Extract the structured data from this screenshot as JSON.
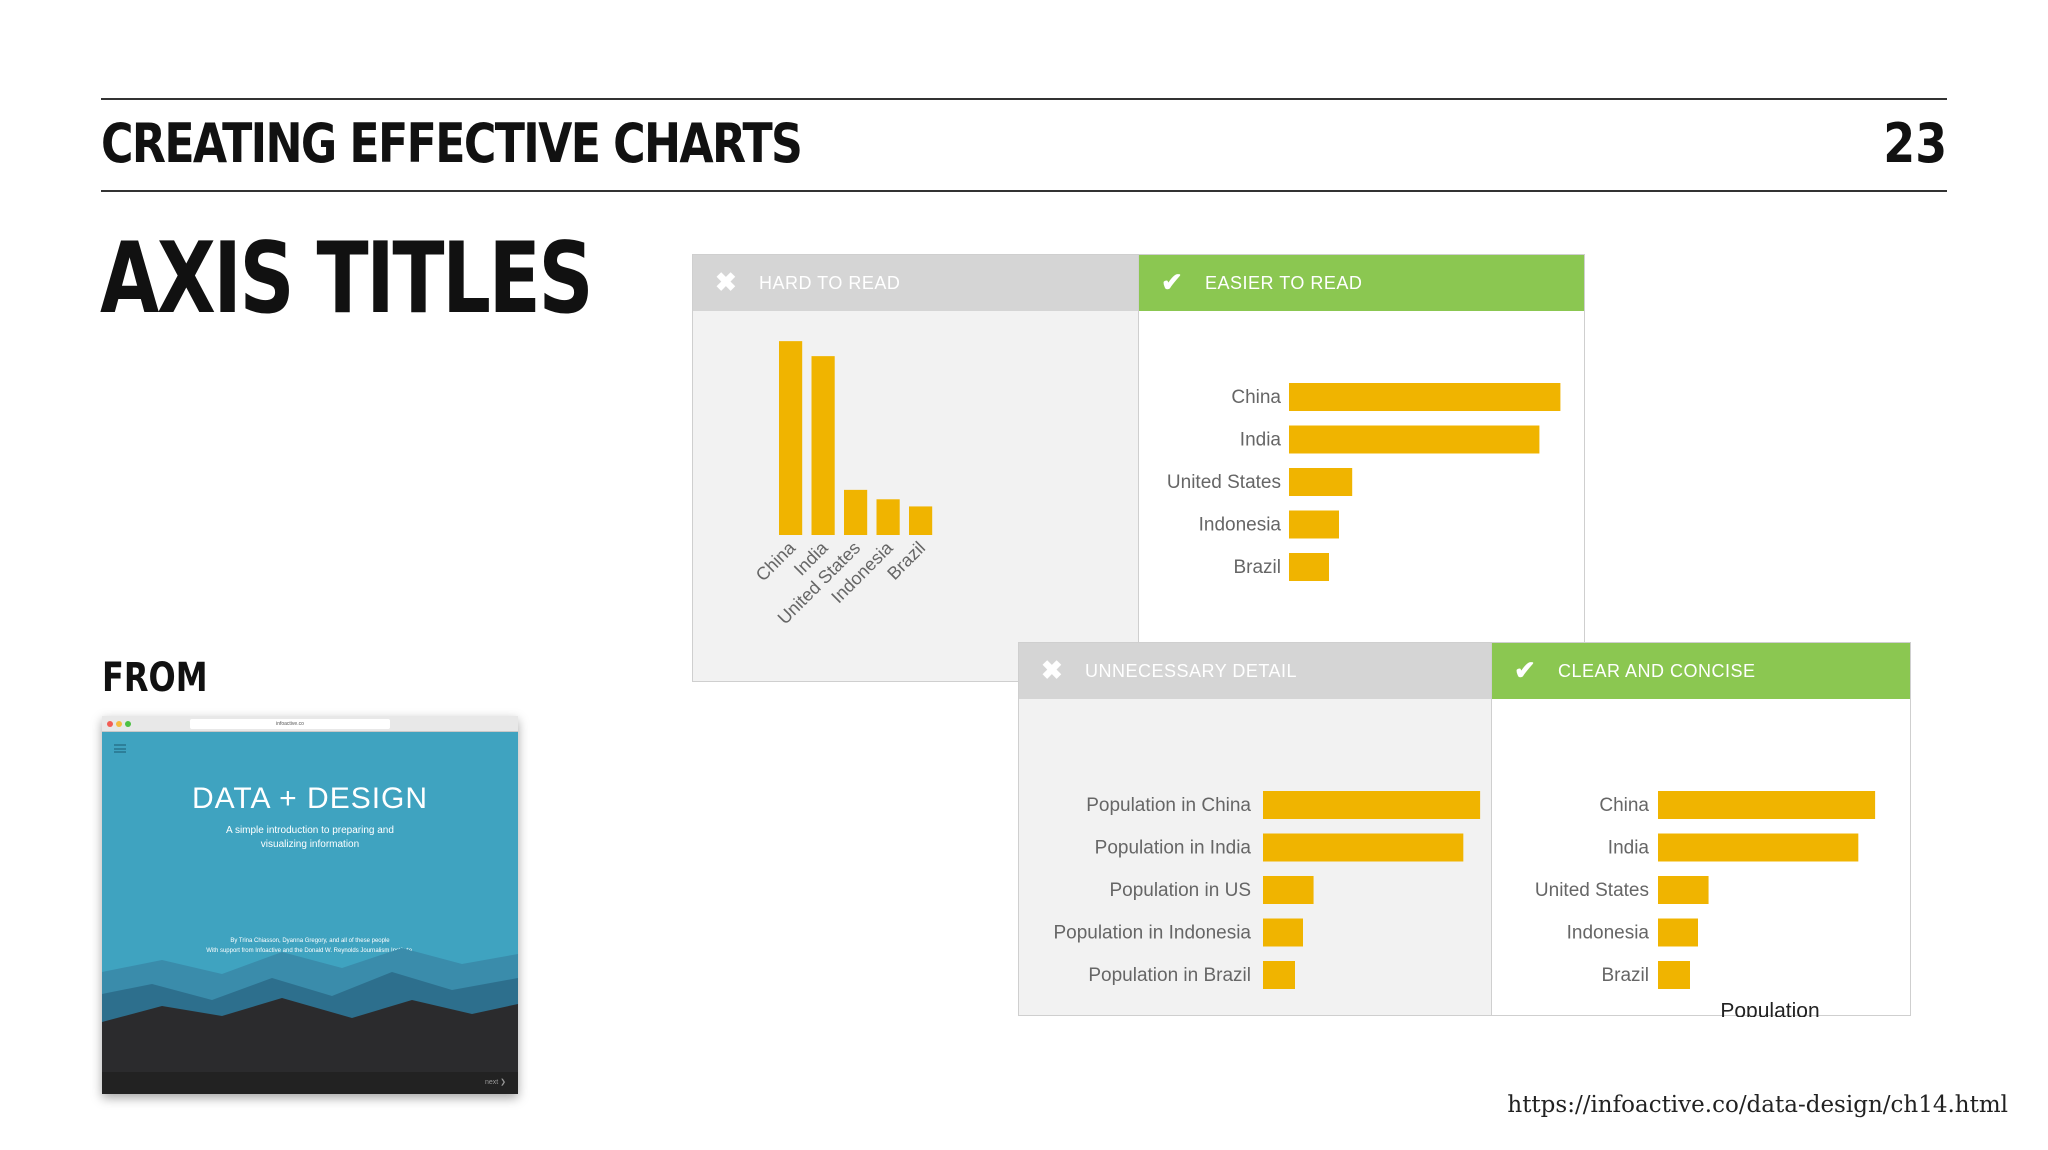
{
  "header": {
    "title": "CREATING EFFECTIVE CHARTS",
    "page_number": "23"
  },
  "slide": {
    "title": "AXIS TITLES",
    "from_label": "FROM"
  },
  "thumbnail": {
    "url": "infoactive.co",
    "title": "DATA + DESIGN",
    "subtitle": "A simple introduction to preparing and visualizing information",
    "credit_line_1": "By Trina Chiasson, Dyanna Gregory, and all of these people",
    "credit_line_2": "With support from Infoactive and the Donald W. Reynolds Journalism Institute.",
    "next_label": "next",
    "colors": {
      "sky": "#3fa3c0",
      "mountain_light": "#3a8cab",
      "mountain_mid": "#2d6f8d",
      "mountain_dark": "#2b2b2d"
    }
  },
  "colors": {
    "bar": "#f0b400",
    "good_header": "#8bc751",
    "bad_header": "#d5d5d5",
    "label_text": "#666666"
  },
  "panels": {
    "hard_to_read": {
      "header": "HARD TO READ",
      "icon": "x-icon"
    },
    "easier_to_read": {
      "header": "EASIER TO READ",
      "icon": "check-icon"
    },
    "unnecessary_detail": {
      "header": "UNNECESSARY DETAIL",
      "icon": "x-icon"
    },
    "clear_and_concise": {
      "header": "CLEAR AND CONCISE",
      "icon": "check-icon",
      "axis_title": "Population"
    }
  },
  "chart_data": [
    {
      "type": "bar",
      "orientation": "vertical",
      "categories": [
        "China",
        "India",
        "United States",
        "Indonesia",
        "Brazil"
      ],
      "values": [
        1357,
        1252,
        316,
        250,
        200
      ],
      "tick_label_rotation": "rotated",
      "title": "",
      "xlabel": "",
      "ylabel": "",
      "ylim": [
        0,
        1400
      ],
      "grid": false
    },
    {
      "type": "bar",
      "orientation": "horizontal",
      "categories": [
        "China",
        "India",
        "United States",
        "Indonesia",
        "Brazil"
      ],
      "values": [
        1357,
        1252,
        316,
        250,
        200
      ],
      "title": "",
      "xlabel": "",
      "ylabel": "",
      "xlim": [
        0,
        1400
      ],
      "grid": false
    },
    {
      "type": "bar",
      "orientation": "horizontal",
      "categories": [
        "Population in China",
        "Population in India",
        "Population in US",
        "Population in Indonesia",
        "Population in Brazil"
      ],
      "values": [
        1357,
        1252,
        316,
        250,
        200
      ],
      "title": "",
      "xlabel": "",
      "ylabel": "",
      "xlim": [
        0,
        1400
      ],
      "grid": false
    },
    {
      "type": "bar",
      "orientation": "horizontal",
      "categories": [
        "China",
        "India",
        "United States",
        "Indonesia",
        "Brazil"
      ],
      "values": [
        1357,
        1252,
        316,
        250,
        200
      ],
      "title": "",
      "xlabel": "Population",
      "ylabel": "",
      "xlim": [
        0,
        1400
      ],
      "grid": false
    }
  ],
  "source": {
    "url": "https://infoactive.co/data-design/ch14.html"
  }
}
